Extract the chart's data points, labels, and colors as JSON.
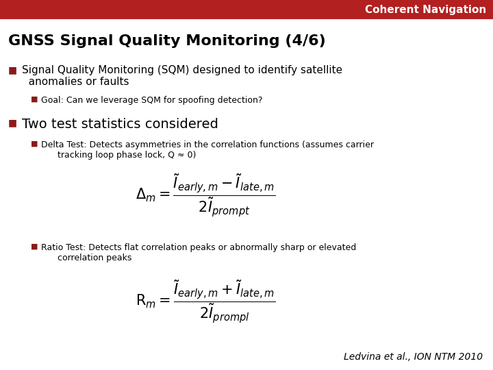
{
  "header_text": "Coherent Navigation",
  "header_bg": "#B22020",
  "header_text_color": "#FFFFFF",
  "slide_bg": "#FFFFFF",
  "title": "GNSS Signal Quality Monitoring (4/6)",
  "title_color": "#000000",
  "bullet_color": "#8B1A1A",
  "footnote": "Ledvina et al., ION NTM 2010",
  "footnote_color": "#000000"
}
